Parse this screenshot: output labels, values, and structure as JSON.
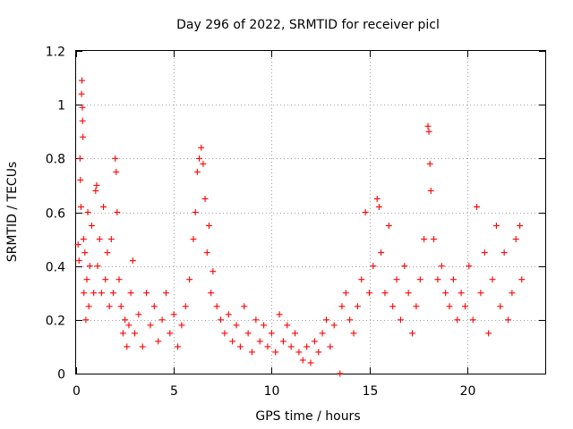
{
  "chart_data": {
    "type": "scatter",
    "title": "Day 296 of 2022, SRMTID for receiver picl",
    "xlabel": "GPS time / hours",
    "ylabel": "SRMTID / TECUs",
    "xlim": [
      0,
      24
    ],
    "ylim": [
      0,
      1.2
    ],
    "xticks": [
      0,
      5,
      10,
      15,
      20
    ],
    "xtick_labels": [
      "0",
      "5",
      "10",
      "15",
      "20"
    ],
    "yticks": [
      0,
      0.2,
      0.4,
      0.6,
      0.8,
      1,
      1.2
    ],
    "ytick_labels": [
      "0",
      "0.2",
      "0.4",
      "0.6",
      "0.8",
      "1",
      "1.2"
    ],
    "grid": true,
    "marker": "+",
    "color": "#ff0000",
    "series": [
      {
        "name": "SRMTID",
        "points": [
          [
            0.1,
            0.48
          ],
          [
            0.15,
            0.42
          ],
          [
            0.2,
            0.8
          ],
          [
            0.22,
            0.72
          ],
          [
            0.25,
            0.62
          ],
          [
            0.28,
            1.04
          ],
          [
            0.3,
            1.09
          ],
          [
            0.32,
            0.99
          ],
          [
            0.33,
            0.94
          ],
          [
            0.35,
            0.88
          ],
          [
            0.38,
            0.5
          ],
          [
            0.4,
            0.3
          ],
          [
            0.45,
            0.45
          ],
          [
            0.5,
            0.2
          ],
          [
            0.55,
            0.35
          ],
          [
            0.6,
            0.6
          ],
          [
            0.65,
            0.25
          ],
          [
            0.7,
            0.4
          ],
          [
            0.8,
            0.55
          ],
          [
            0.9,
            0.3
          ],
          [
            1.0,
            0.68
          ],
          [
            1.05,
            0.7
          ],
          [
            1.1,
            0.4
          ],
          [
            1.2,
            0.5
          ],
          [
            1.3,
            0.3
          ],
          [
            1.4,
            0.62
          ],
          [
            1.5,
            0.35
          ],
          [
            1.6,
            0.45
          ],
          [
            1.7,
            0.25
          ],
          [
            1.8,
            0.5
          ],
          [
            1.9,
            0.3
          ],
          [
            2.0,
            0.8
          ],
          [
            2.05,
            0.75
          ],
          [
            2.1,
            0.6
          ],
          [
            2.2,
            0.35
          ],
          [
            2.3,
            0.25
          ],
          [
            2.4,
            0.15
          ],
          [
            2.5,
            0.2
          ],
          [
            2.6,
            0.1
          ],
          [
            2.7,
            0.18
          ],
          [
            2.8,
            0.3
          ],
          [
            2.9,
            0.42
          ],
          [
            3.0,
            0.15
          ],
          [
            3.2,
            0.22
          ],
          [
            3.4,
            0.1
          ],
          [
            3.6,
            0.3
          ],
          [
            3.8,
            0.18
          ],
          [
            4.0,
            0.25
          ],
          [
            4.2,
            0.12
          ],
          [
            4.4,
            0.2
          ],
          [
            4.6,
            0.3
          ],
          [
            4.8,
            0.15
          ],
          [
            5.0,
            0.22
          ],
          [
            5.2,
            0.1
          ],
          [
            5.4,
            0.18
          ],
          [
            5.6,
            0.25
          ],
          [
            5.8,
            0.35
          ],
          [
            6.0,
            0.5
          ],
          [
            6.1,
            0.6
          ],
          [
            6.2,
            0.75
          ],
          [
            6.3,
            0.8
          ],
          [
            6.4,
            0.84
          ],
          [
            6.5,
            0.78
          ],
          [
            6.6,
            0.65
          ],
          [
            6.7,
            0.45
          ],
          [
            6.8,
            0.55
          ],
          [
            6.9,
            0.3
          ],
          [
            7.0,
            0.38
          ],
          [
            7.2,
            0.25
          ],
          [
            7.4,
            0.2
          ],
          [
            7.6,
            0.15
          ],
          [
            7.8,
            0.22
          ],
          [
            8.0,
            0.12
          ],
          [
            8.2,
            0.18
          ],
          [
            8.4,
            0.1
          ],
          [
            8.6,
            0.25
          ],
          [
            8.8,
            0.15
          ],
          [
            9.0,
            0.08
          ],
          [
            9.2,
            0.2
          ],
          [
            9.4,
            0.12
          ],
          [
            9.6,
            0.18
          ],
          [
            9.8,
            0.1
          ],
          [
            10.0,
            0.15
          ],
          [
            10.2,
            0.08
          ],
          [
            10.4,
            0.22
          ],
          [
            10.6,
            0.12
          ],
          [
            10.8,
            0.18
          ],
          [
            11.0,
            0.1
          ],
          [
            11.2,
            0.15
          ],
          [
            11.4,
            0.08
          ],
          [
            11.6,
            0.05
          ],
          [
            11.8,
            0.1
          ],
          [
            12.0,
            0.04
          ],
          [
            12.2,
            0.12
          ],
          [
            12.4,
            0.08
          ],
          [
            12.6,
            0.15
          ],
          [
            12.8,
            0.2
          ],
          [
            13.0,
            0.1
          ],
          [
            13.2,
            0.18
          ],
          [
            13.5,
            0.0
          ],
          [
            13.6,
            0.25
          ],
          [
            13.8,
            0.3
          ],
          [
            14.0,
            0.2
          ],
          [
            14.2,
            0.15
          ],
          [
            14.4,
            0.25
          ],
          [
            14.6,
            0.35
          ],
          [
            14.8,
            0.6
          ],
          [
            15.0,
            0.3
          ],
          [
            15.2,
            0.4
          ],
          [
            15.4,
            0.65
          ],
          [
            15.5,
            0.62
          ],
          [
            15.6,
            0.45
          ],
          [
            15.8,
            0.3
          ],
          [
            16.0,
            0.55
          ],
          [
            16.2,
            0.25
          ],
          [
            16.4,
            0.35
          ],
          [
            16.6,
            0.2
          ],
          [
            16.8,
            0.4
          ],
          [
            17.0,
            0.3
          ],
          [
            17.2,
            0.15
          ],
          [
            17.4,
            0.25
          ],
          [
            17.6,
            0.35
          ],
          [
            17.8,
            0.5
          ],
          [
            18.0,
            0.92
          ],
          [
            18.05,
            0.9
          ],
          [
            18.1,
            0.78
          ],
          [
            18.15,
            0.68
          ],
          [
            18.3,
            0.5
          ],
          [
            18.5,
            0.35
          ],
          [
            18.7,
            0.4
          ],
          [
            18.9,
            0.3
          ],
          [
            19.1,
            0.25
          ],
          [
            19.3,
            0.35
          ],
          [
            19.5,
            0.2
          ],
          [
            19.7,
            0.3
          ],
          [
            19.9,
            0.25
          ],
          [
            20.1,
            0.4
          ],
          [
            20.3,
            0.2
          ],
          [
            20.5,
            0.62
          ],
          [
            20.7,
            0.3
          ],
          [
            20.9,
            0.45
          ],
          [
            21.1,
            0.15
          ],
          [
            21.3,
            0.35
          ],
          [
            21.5,
            0.55
          ],
          [
            21.7,
            0.25
          ],
          [
            21.9,
            0.45
          ],
          [
            22.1,
            0.2
          ],
          [
            22.3,
            0.3
          ],
          [
            22.5,
            0.5
          ],
          [
            22.7,
            0.55
          ],
          [
            22.8,
            0.35
          ]
        ]
      }
    ]
  }
}
